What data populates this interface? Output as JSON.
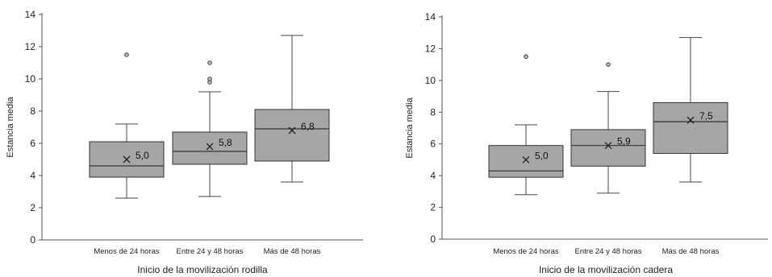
{
  "chart_data": [
    {
      "type": "box",
      "xlabel": "Inicio de la movilización rodilla",
      "ylabel": "Estancia media",
      "ylim": [
        0,
        14
      ],
      "yticks": [
        0,
        2,
        4,
        6,
        8,
        10,
        12,
        14
      ],
      "grid": false,
      "categories": [
        "Menos de 24 horas",
        "Entre 24 y 48 horas",
        "Más de 48 horas"
      ],
      "boxes": [
        {
          "category": "Menos de 24 horas",
          "min": 2.6,
          "q1": 3.9,
          "median": 4.6,
          "q3": 6.1,
          "max": 7.2,
          "mean": 5.0,
          "mean_label": "5,0",
          "outliers": [
            11.5
          ]
        },
        {
          "category": "Entre 24 y 48 horas",
          "min": 2.7,
          "q1": 4.7,
          "median": 5.5,
          "q3": 6.7,
          "max": 9.2,
          "mean": 5.8,
          "mean_label": "5,8",
          "outliers": [
            9.8,
            10.0,
            11.0
          ]
        },
        {
          "category": "Más de 48 horas",
          "min": 3.6,
          "q1": 4.9,
          "median": 6.9,
          "q3": 8.1,
          "max": 12.7,
          "mean": 6.8,
          "mean_label": "6,8",
          "outliers": []
        }
      ]
    },
    {
      "type": "box",
      "xlabel": "Inicio de la movilización cadera",
      "ylabel": "Estancia media",
      "ylim": [
        0,
        14
      ],
      "yticks": [
        0,
        2,
        4,
        6,
        8,
        10,
        12,
        14
      ],
      "grid": false,
      "categories": [
        "Menos de 24 horas",
        "Entre 24 y 48 horas",
        "Más de 48 horas"
      ],
      "boxes": [
        {
          "category": "Menos de 24 horas",
          "min": 2.8,
          "q1": 3.9,
          "median": 4.3,
          "q3": 5.9,
          "max": 7.2,
          "mean": 5.0,
          "mean_label": "5,0",
          "outliers": [
            11.5
          ]
        },
        {
          "category": "Entre 24 y 48 horas",
          "min": 2.9,
          "q1": 4.6,
          "median": 5.9,
          "q3": 6.9,
          "max": 9.3,
          "mean": 5.9,
          "mean_label": "5,9",
          "outliers": [
            11.0
          ]
        },
        {
          "category": "Más de 48 horas",
          "min": 3.6,
          "q1": 5.4,
          "median": 7.4,
          "q3": 8.6,
          "max": 12.7,
          "mean": 7.5,
          "mean_label": "7,5",
          "outliers": []
        }
      ]
    }
  ]
}
